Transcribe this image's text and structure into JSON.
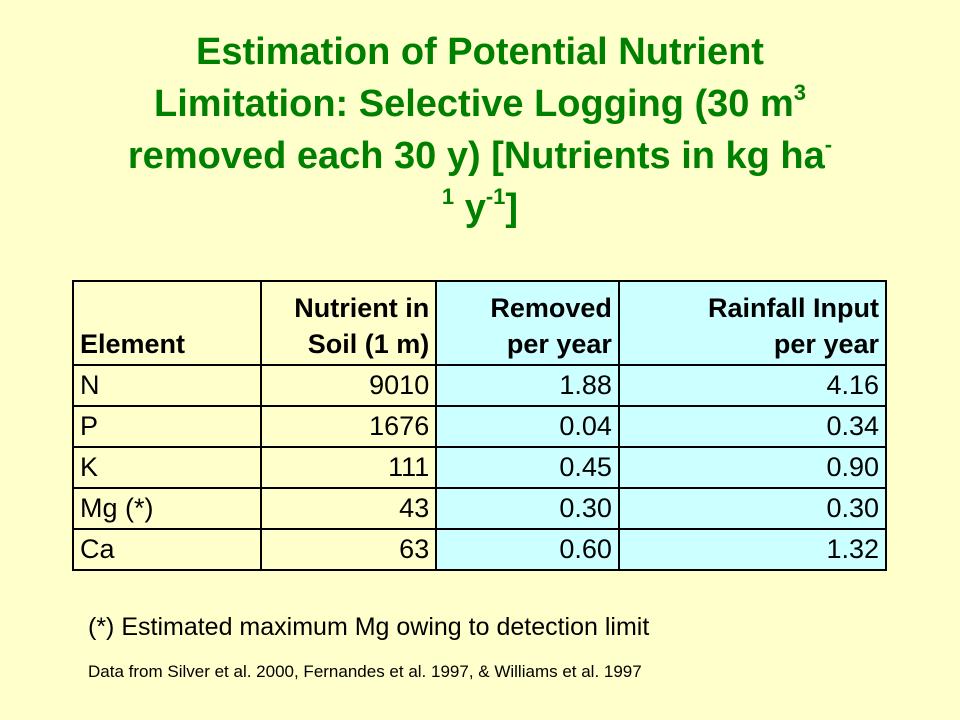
{
  "title": {
    "line1": "Estimation of Potential Nutrient",
    "line2_a": "Limitation: Selective Logging (30 m",
    "line2_sup": "3",
    "line3_a": "removed each 30 y) [Nutrients in kg ha",
    "line3_sup": "-",
    "line4_a": "1",
    "line4_b": " y",
    "line4_sup": "-1",
    "line4_c": "]"
  },
  "table": {
    "headers": {
      "element": "Element",
      "soil_l1": "Nutrient in",
      "soil_l2": "Soil (1 m)",
      "removed_l1": "Removed",
      "removed_l2": "per year",
      "rain_l1": "Rainfall Input",
      "rain_l2": "per year"
    },
    "rows": [
      {
        "element": "N",
        "soil": "9010",
        "removed": "1.88",
        "rain": "4.16"
      },
      {
        "element": "P",
        "soil": "1676",
        "removed": "0.04",
        "rain": "0.34"
      },
      {
        "element": "K",
        "soil": "111",
        "removed": "0.45",
        "rain": "0.90"
      },
      {
        "element": "Mg (*)",
        "soil": "43",
        "removed": "0.30",
        "rain": "0.30"
      },
      {
        "element": "Ca",
        "soil": "63",
        "removed": "0.60",
        "rain": "1.32"
      }
    ]
  },
  "footnote": "(*) Estimated maximum Mg owing to detection limit",
  "source": "Data from Silver et al. 2000, Fernandes et al. 1997, & Williams et al. 1997",
  "colors": {
    "background": "#ffffcc",
    "title": "#008000",
    "highlight_columns": "#ccffff"
  }
}
